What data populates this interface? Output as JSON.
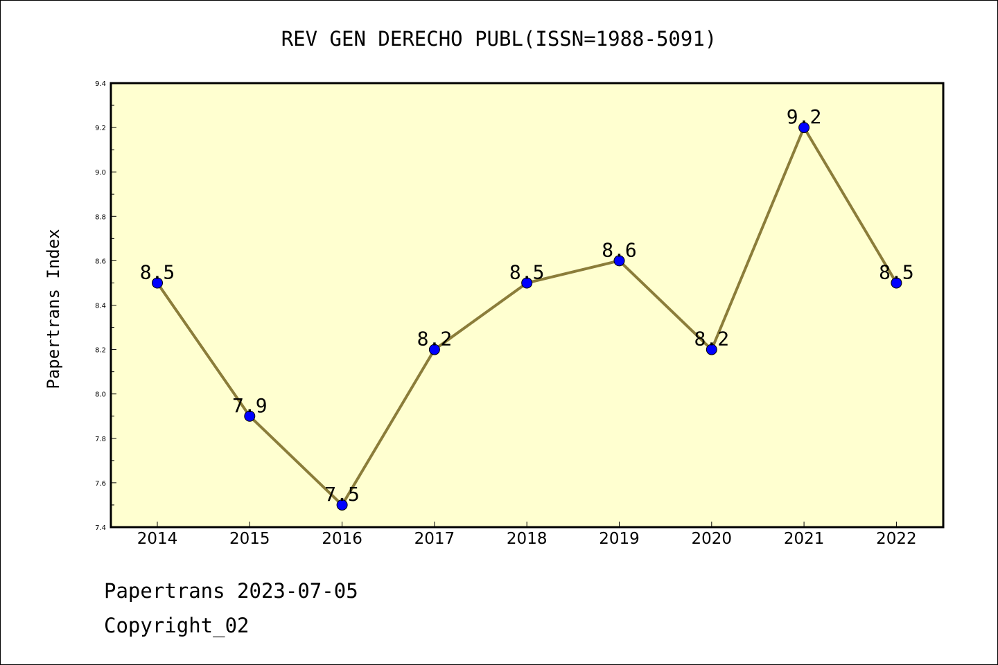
{
  "chart_data": {
    "type": "line",
    "title": "REV GEN DERECHO PUBL(ISSN=1988-5091)",
    "ylabel": "Papertrans Index",
    "xlabel": "",
    "categories": [
      "2014",
      "2015",
      "2016",
      "2017",
      "2018",
      "2019",
      "2020",
      "2021",
      "2022"
    ],
    "series": [
      {
        "values": [
          8.5,
          7.9,
          7.5,
          8.2,
          8.5,
          8.6,
          8.2,
          9.2,
          8.5
        ]
      }
    ],
    "data_labels": [
      "8.5",
      "7.9",
      "7.5",
      "8.2",
      "8.5",
      "8.6",
      "8.2",
      "9.2",
      "8.5"
    ],
    "ylim": [
      7.4,
      9.4
    ],
    "yticks": [
      "7.4",
      "7.6",
      "7.8",
      "8.0",
      "8.2",
      "8.4",
      "8.6",
      "8.8",
      "9.0",
      "9.2",
      "9.4"
    ],
    "grid": false,
    "legend": "none",
    "colors": {
      "plot_background": "#ffffd0",
      "line": "#8b7d3a",
      "marker": "#0000ff",
      "axis": "#000000"
    }
  },
  "footer": {
    "line1": "Papertrans 2023-07-05",
    "line2": "Copyright_02"
  }
}
